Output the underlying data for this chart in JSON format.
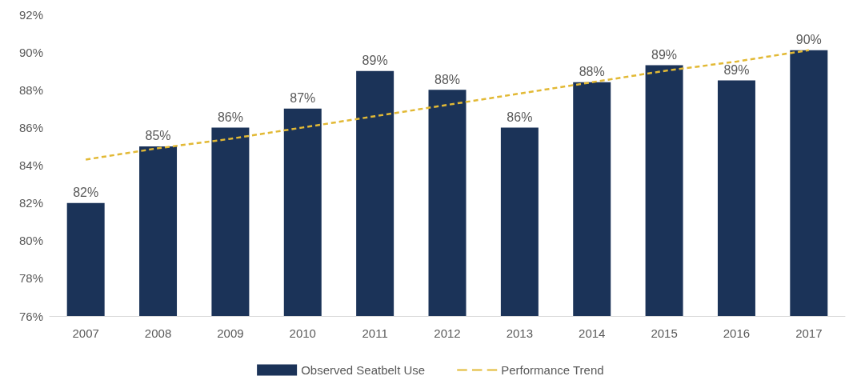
{
  "chart_data": {
    "type": "bar",
    "categories": [
      "2007",
      "2008",
      "2009",
      "2010",
      "2011",
      "2012",
      "2013",
      "2014",
      "2015",
      "2016",
      "2017"
    ],
    "series": [
      {
        "name": "Observed Seatbelt Use",
        "color": "#1b3358",
        "values": [
          82,
          85,
          86,
          87,
          89,
          88,
          86,
          88.4,
          89.3,
          88.5,
          90.1
        ],
        "value_labels": [
          "82%",
          "85%",
          "86%",
          "87%",
          "89%",
          "88%",
          "86%",
          "88%",
          "89%",
          "89%",
          "90%"
        ]
      },
      {
        "name": "Performance Trend",
        "type": "line",
        "color": "#e2b935",
        "line_style": "dashed",
        "marker": "none",
        "values": [
          84.3,
          84.9,
          85.4,
          86.0,
          86.6,
          87.2,
          87.8,
          88.4,
          89.0,
          89.5,
          90.1
        ]
      }
    ],
    "ylim": [
      76,
      92
    ],
    "yticks": [
      {
        "value": 76,
        "label": "76%"
      },
      {
        "value": 78,
        "label": "78%"
      },
      {
        "value": 80,
        "label": "80%"
      },
      {
        "value": 82,
        "label": "82%"
      },
      {
        "value": 84,
        "label": "84%"
      },
      {
        "value": 86,
        "label": "86%"
      },
      {
        "value": 88,
        "label": "88%"
      },
      {
        "value": 90,
        "label": "90%"
      },
      {
        "value": 92,
        "label": "92%"
      }
    ],
    "grid": false,
    "legend": "bottom"
  }
}
